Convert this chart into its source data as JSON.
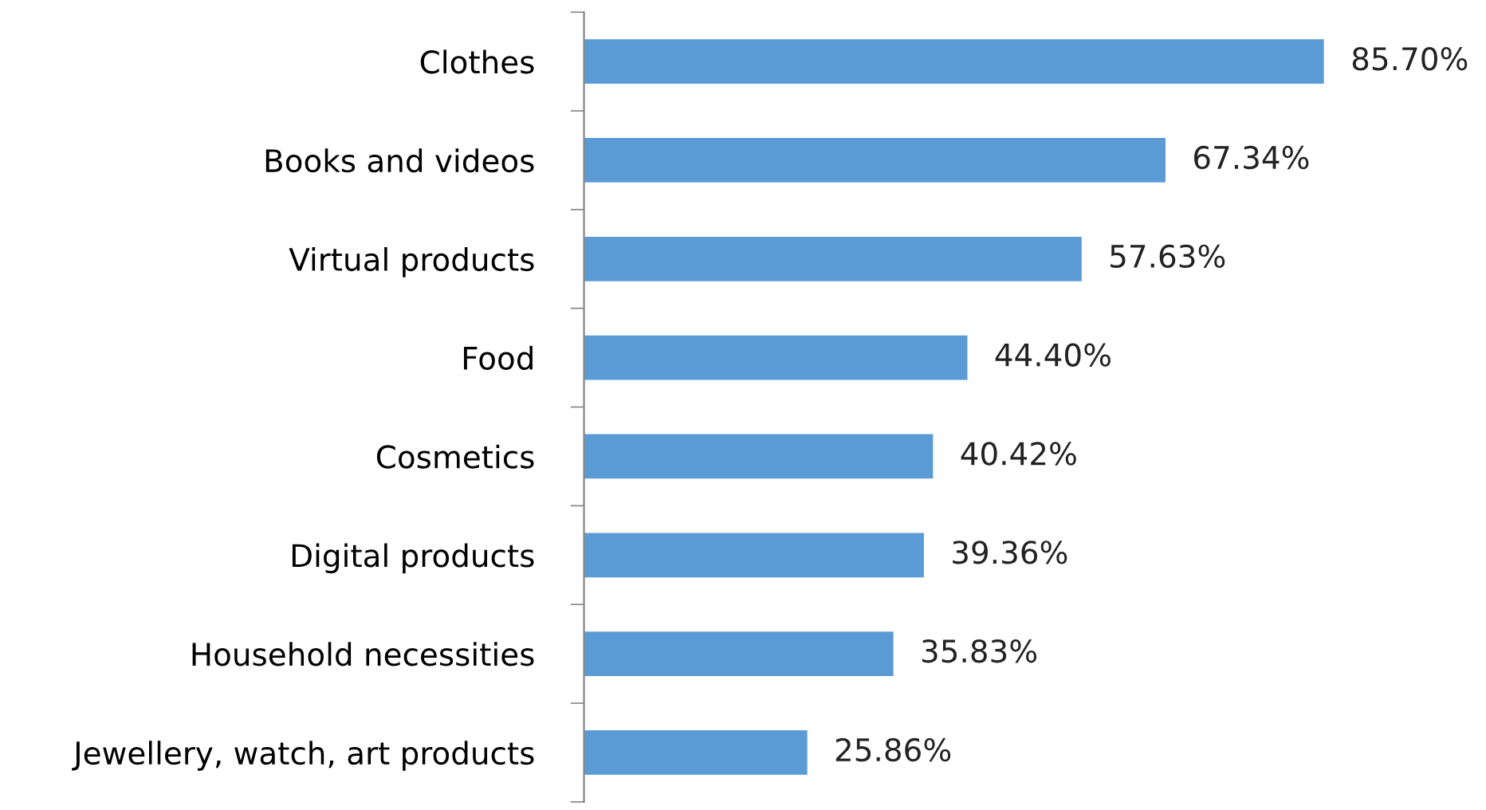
{
  "chart_data": {
    "type": "bar",
    "orientation": "horizontal",
    "categories": [
      "Clothes",
      "Books and videos",
      "Virtual products",
      "Food",
      "Cosmetics",
      "Digital products",
      "Household necessities",
      "Jewellery, watch, art products"
    ],
    "values": [
      85.7,
      67.34,
      57.63,
      44.4,
      40.42,
      39.36,
      35.83,
      25.86
    ],
    "value_labels": [
      "85.70%",
      "67.34%",
      "57.63%",
      "44.40%",
      "40.42%",
      "39.36%",
      "35.83%",
      "25.86%"
    ],
    "color": "#5b9bd5",
    "tick_labels": "y",
    "grid": false,
    "legend": false
  }
}
